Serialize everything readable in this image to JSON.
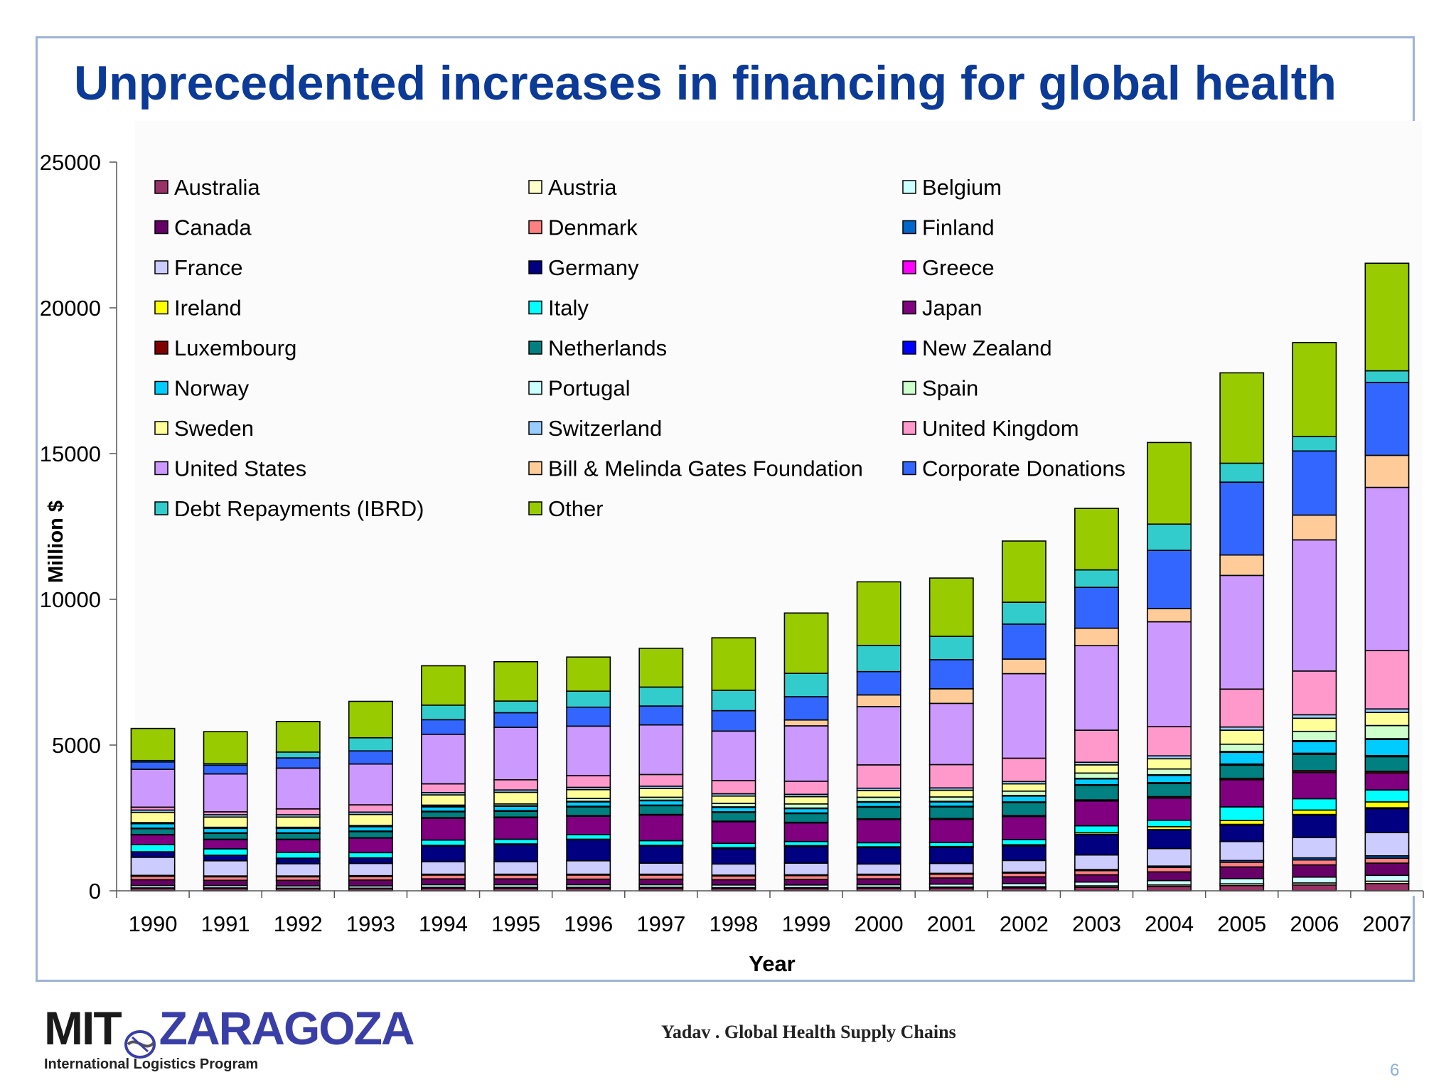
{
  "slide": {
    "title": "Unprecedented increases in financing for global health",
    "citation": "Yadav . Global Health Supply Chains",
    "page_number": "6",
    "logo": {
      "left": "MIT",
      "right": "ZARAGOZA",
      "subtitle": "International Logistics Program"
    }
  },
  "colors": {
    "title": "#0b3a97",
    "frame": "#9db3d6"
  },
  "chart_data": {
    "type": "bar",
    "stacked": true,
    "title": "",
    "xlabel": "Year",
    "ylabel": "Million $",
    "ylim": [
      0,
      25000
    ],
    "yticks": [
      0,
      5000,
      10000,
      15000,
      20000,
      25000
    ],
    "legend_position": "top-left (inside plot)",
    "categories": [
      "1990",
      "1991",
      "1992",
      "1993",
      "1994",
      "1995",
      "1996",
      "1997",
      "1998",
      "1999",
      "2000",
      "2001",
      "2002",
      "2003",
      "2004",
      "2005",
      "2006",
      "2007"
    ],
    "series": [
      {
        "name": "Australia",
        "color": "#993366",
        "values": [
          80,
          80,
          70,
          70,
          90,
          90,
          90,
          90,
          80,
          80,
          90,
          100,
          100,
          120,
          150,
          180,
          200,
          250
        ]
      },
      {
        "name": "Austria",
        "color": "#ffffcc",
        "values": [
          20,
          20,
          20,
          20,
          30,
          30,
          30,
          30,
          30,
          30,
          30,
          30,
          40,
          50,
          50,
          60,
          70,
          80
        ]
      },
      {
        "name": "Belgium",
        "color": "#ccffff",
        "values": [
          80,
          80,
          80,
          80,
          90,
          90,
          90,
          90,
          90,
          90,
          90,
          100,
          110,
          130,
          150,
          180,
          200,
          200
        ]
      },
      {
        "name": "Canada",
        "color": "#660066",
        "values": [
          200,
          180,
          190,
          200,
          200,
          200,
          190,
          190,
          180,
          190,
          200,
          210,
          230,
          250,
          300,
          400,
          420,
          420
        ]
      },
      {
        "name": "Denmark",
        "color": "#ff8080",
        "values": [
          120,
          120,
          120,
          120,
          130,
          130,
          140,
          140,
          130,
          130,
          130,
          130,
          130,
          140,
          150,
          160,
          170,
          170
        ]
      },
      {
        "name": "Finland",
        "color": "#0066cc",
        "values": [
          30,
          30,
          30,
          30,
          30,
          30,
          30,
          30,
          30,
          30,
          30,
          30,
          30,
          40,
          50,
          60,
          70,
          80
        ]
      },
      {
        "name": "France",
        "color": "#ccccff",
        "values": [
          620,
          520,
          420,
          420,
          430,
          430,
          460,
          380,
          380,
          400,
          350,
          340,
          400,
          500,
          600,
          650,
          700,
          800
        ]
      },
      {
        "name": "Germany",
        "color": "#000080",
        "values": [
          190,
          190,
          190,
          190,
          540,
          590,
          720,
          590,
          530,
          570,
          560,
          550,
          500,
          700,
          650,
          560,
          760,
          820
        ]
      },
      {
        "name": "Greece",
        "color": "#ff00ff",
        "values": [
          0,
          0,
          0,
          0,
          0,
          0,
          0,
          0,
          0,
          0,
          0,
          0,
          0,
          0,
          0,
          30,
          30,
          30
        ]
      },
      {
        "name": "Ireland",
        "color": "#ffff00",
        "values": [
          0,
          0,
          0,
          0,
          20,
          20,
          20,
          20,
          30,
          30,
          30,
          30,
          40,
          60,
          100,
          130,
          150,
          200
        ]
      },
      {
        "name": "Italy",
        "color": "#00ffff",
        "values": [
          250,
          220,
          200,
          180,
          180,
          160,
          160,
          160,
          150,
          140,
          140,
          140,
          180,
          240,
          220,
          470,
          390,
          410
        ]
      },
      {
        "name": "Japan",
        "color": "#800080",
        "values": [
          330,
          320,
          440,
          500,
          750,
          740,
          630,
          880,
          740,
          640,
          800,
          790,
          790,
          850,
          760,
          930,
          900,
          580
        ]
      },
      {
        "name": "Luxembourg",
        "color": "#800000",
        "values": [
          10,
          10,
          10,
          10,
          20,
          20,
          20,
          20,
          20,
          20,
          20,
          30,
          30,
          40,
          50,
          50,
          60,
          60
        ]
      },
      {
        "name": "Netherlands",
        "color": "#008080",
        "values": [
          200,
          200,
          200,
          210,
          200,
          200,
          300,
          300,
          300,
          300,
          400,
          400,
          450,
          500,
          450,
          450,
          560,
          500
        ]
      },
      {
        "name": "New Zealand",
        "color": "#0000ff",
        "values": [
          20,
          20,
          20,
          20,
          20,
          20,
          20,
          20,
          20,
          20,
          20,
          20,
          20,
          20,
          30,
          40,
          40,
          40
        ]
      },
      {
        "name": "Norway",
        "color": "#00ccff",
        "values": [
          150,
          150,
          150,
          150,
          150,
          150,
          150,
          150,
          150,
          150,
          150,
          150,
          200,
          200,
          250,
          400,
          400,
          550
        ]
      },
      {
        "name": "Portugal",
        "color": "#ccffff",
        "values": [
          20,
          20,
          20,
          20,
          20,
          20,
          20,
          20,
          20,
          20,
          20,
          20,
          20,
          20,
          20,
          30,
          30,
          30
        ]
      },
      {
        "name": "Spain",
        "color": "#ccffcc",
        "values": [
          20,
          20,
          20,
          20,
          40,
          60,
          100,
          100,
          120,
          140,
          150,
          150,
          150,
          180,
          200,
          250,
          320,
          450
        ]
      },
      {
        "name": "Sweden",
        "color": "#ffff99",
        "values": [
          350,
          350,
          350,
          380,
          350,
          400,
          300,
          300,
          250,
          250,
          230,
          230,
          250,
          280,
          350,
          480,
          450,
          450
        ]
      },
      {
        "name": "Switzerland",
        "color": "#99ccff",
        "values": [
          80,
          80,
          80,
          80,
          80,
          80,
          80,
          80,
          80,
          80,
          80,
          80,
          80,
          90,
          100,
          110,
          120,
          120
        ]
      },
      {
        "name": "United Kingdom",
        "color": "#ff99cc",
        "values": [
          100,
          100,
          200,
          250,
          300,
          350,
          400,
          400,
          450,
          450,
          800,
          800,
          800,
          1100,
          1000,
          1300,
          1500,
          2000
        ]
      },
      {
        "name": "United States",
        "color": "#cc99ff",
        "values": [
          1300,
          1300,
          1400,
          1400,
          1700,
          1800,
          1700,
          1700,
          1700,
          1900,
          2000,
          2100,
          2900,
          2900,
          3600,
          3900,
          4500,
          5600
        ]
      },
      {
        "name": "Bill & Melinda Gates Foundation",
        "color": "#ffcc99",
        "values": [
          0,
          0,
          0,
          0,
          0,
          0,
          0,
          0,
          0,
          200,
          400,
          500,
          500,
          600,
          450,
          700,
          850,
          1100
        ]
      },
      {
        "name": "Corporate Donations",
        "color": "#3366ff",
        "values": [
          250,
          300,
          350,
          450,
          500,
          500,
          650,
          650,
          700,
          800,
          800,
          1000,
          1200,
          1400,
          2000,
          2500,
          2200,
          2500
        ]
      },
      {
        "name": "Debt Repayments (IBRD)",
        "color": "#33cccc",
        "values": [
          50,
          50,
          200,
          450,
          500,
          400,
          550,
          650,
          700,
          800,
          900,
          800,
          750,
          600,
          900,
          650,
          500,
          400
        ]
      },
      {
        "name": "Other",
        "color": "#99cc00",
        "values": [
          1100,
          1100,
          1050,
          1250,
          1350,
          1350,
          1170,
          1330,
          1800,
          2070,
          2180,
          2000,
          2100,
          2110,
          2800,
          3100,
          3220,
          3690
        ]
      }
    ]
  }
}
